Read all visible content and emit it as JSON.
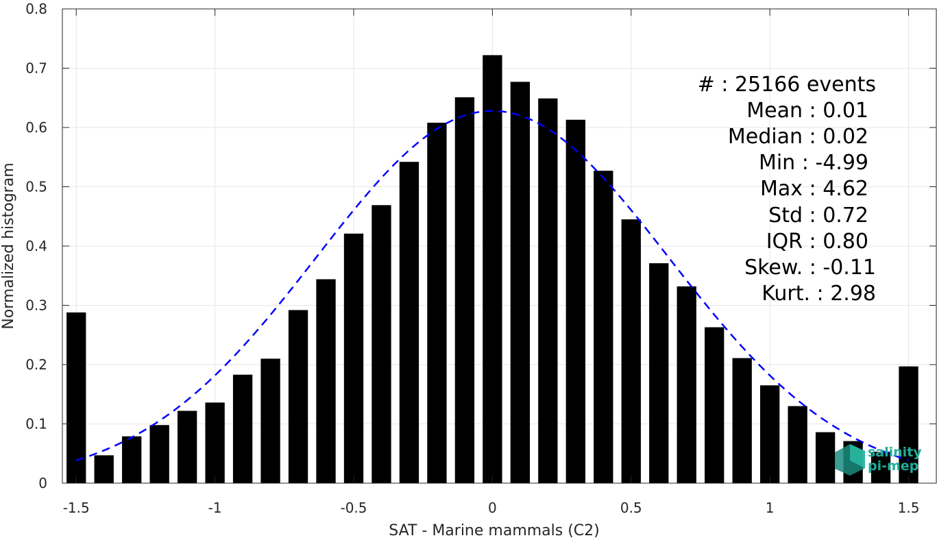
{
  "chart_data": {
    "type": "bar",
    "xlabel": "SAT - Marine mammals (C2)",
    "ylabel": "Normalized histogram",
    "xlim": [
      -1.55,
      1.6
    ],
    "ylim": [
      0,
      0.8
    ],
    "xticks": [
      -1.5,
      -1,
      -0.5,
      0,
      0.5,
      1,
      1.5
    ],
    "xtick_labels": [
      "-1.5",
      "-1",
      "-0.5",
      "0",
      "0.5",
      "1",
      "1.5"
    ],
    "yticks": [
      0,
      0.1,
      0.2,
      0.3,
      0.4,
      0.5,
      0.6,
      0.7,
      0.8
    ],
    "ytick_labels": [
      "0",
      "0.1",
      "0.2",
      "0.3",
      "0.4",
      "0.5",
      "0.6",
      "0.7",
      "0.8"
    ],
    "grid": true,
    "bar_color": "#000000",
    "bar_width": 0.07,
    "x": [
      -1.5,
      -1.4,
      -1.3,
      -1.2,
      -1.1,
      -1.0,
      -0.9,
      -0.8,
      -0.7,
      -0.6,
      -0.5,
      -0.4,
      -0.3,
      -0.2,
      -0.1,
      0.0,
      0.1,
      0.2,
      0.3,
      0.4,
      0.5,
      0.6,
      0.7,
      0.8,
      0.9,
      1.0,
      1.1,
      1.2,
      1.3,
      1.4,
      1.5
    ],
    "values": [
      0.288,
      0.047,
      0.079,
      0.098,
      0.122,
      0.136,
      0.183,
      0.21,
      0.292,
      0.344,
      0.421,
      0.469,
      0.542,
      0.608,
      0.651,
      0.722,
      0.677,
      0.649,
      0.613,
      0.527,
      0.445,
      0.371,
      0.332,
      0.263,
      0.211,
      0.165,
      0.13,
      0.086,
      0.071,
      0.053,
      0.197
    ],
    "fit": {
      "type": "gaussian",
      "mean": 0.0,
      "std": 0.635,
      "peak": 0.628,
      "x_range": [
        -1.5,
        1.5
      ],
      "color": "#0000ff",
      "style": "dashed"
    },
    "annotations": [
      "#  : 25166 events",
      "Mean : 0.01",
      "Median : 0.02",
      "Min : -4.99",
      "Max : 4.62",
      "Std : 0.72",
      "IQR : 0.80",
      "Skew. : -0.11",
      "Kurt. : 2.98"
    ]
  },
  "logo": {
    "line1": "salinity",
    "line2": "pi-mep",
    "color": "#1fae9a"
  }
}
